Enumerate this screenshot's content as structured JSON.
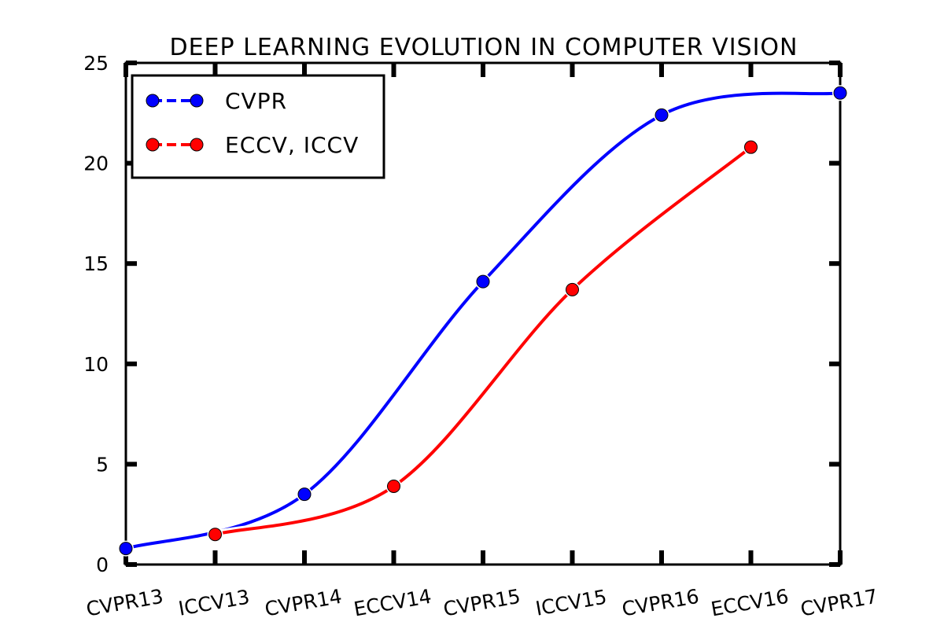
{
  "chart_data": {
    "type": "line",
    "title": "DEEP LEARNING EVOLUTION IN COMPUTER VISION",
    "xlabel": "",
    "ylabel": "",
    "categories": [
      "CVPR13",
      "ICCV13",
      "CVPR14",
      "ECCV14",
      "CVPR15",
      "ICCV15",
      "CVPR16",
      "ECCV16",
      "CVPR17"
    ],
    "ylim": [
      0,
      25
    ],
    "yticks": [
      "0",
      "5",
      "10",
      "15",
      "20",
      "25"
    ],
    "grid": false,
    "legend_position": "top-left",
    "series": [
      {
        "name": "CVPR",
        "color": "#0000ff",
        "points": [
          {
            "category": "CVPR13",
            "value": 0.8
          },
          {
            "category": "CVPR14",
            "value": 3.5
          },
          {
            "category": "CVPR15",
            "value": 14.1
          },
          {
            "category": "CVPR16",
            "value": 22.4
          },
          {
            "category": "CVPR17",
            "value": 23.5
          }
        ]
      },
      {
        "name": "ECCV, ICCV",
        "color": "#ff0000",
        "points": [
          {
            "category": "ICCV13",
            "value": 1.5
          },
          {
            "category": "ECCV14",
            "value": 3.9
          },
          {
            "category": "ICCV15",
            "value": 13.7
          },
          {
            "category": "ECCV16",
            "value": 20.8
          }
        ]
      }
    ]
  }
}
